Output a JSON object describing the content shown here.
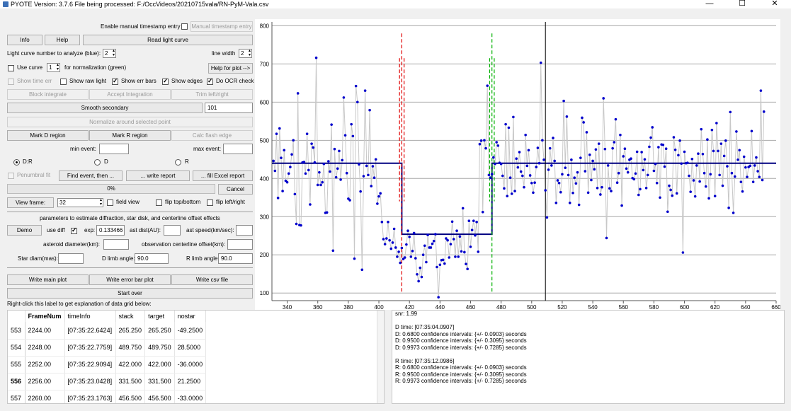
{
  "window": {
    "title": "PYOTE Version: 3.7.6  File being processed: F:/OccVideos/20210715vala/RN-PyM-Vala.csv",
    "controls": [
      "—",
      "☐",
      "✕"
    ]
  },
  "controls": {
    "manual_timestamp_label": "Enable manual timestamp entry",
    "manual_timestamp_btn": "Manual timestamp entry",
    "info_btn": "Info",
    "help_btn": "Help",
    "read_light_curve_btn": "Read light curve",
    "light_curve_number_label": "Light curve number to analyze (blue):",
    "light_curve_number": "2",
    "line_width_label": "line width",
    "line_width": "2",
    "use_curve_label": "Use curve",
    "use_curve_number": "1",
    "normalization_label": "for normalization (green)",
    "help_plot_btn": "Help for plot -->",
    "show_time_err": "Show time err",
    "show_raw_light": "Show raw light",
    "show_err_bars": "Show err bars",
    "show_edges": "Show edges",
    "do_ocr_check": "Do OCR check",
    "block_integrate_btn": "Block integrate",
    "accept_integration_btn": "Accept Integration",
    "trim_btn": "Trim left/right",
    "smooth_secondary_btn": "Smooth secondary",
    "smooth_value": "101",
    "normalize_btn": "Normalize around selected point",
    "mark_d_btn": "Mark D region",
    "mark_r_btn": "Mark R region",
    "calc_flash_btn": "Calc flash edge",
    "min_event_label": "min event:",
    "max_event_label": "max event:",
    "radio_dr": "D:R",
    "radio_d": "D",
    "radio_r": "R",
    "penumbral_fit": "Penumbral fit",
    "find_event_btn": "Find event, then ...",
    "write_report_btn": "... write report",
    "fill_excel_btn": "... fill Excel report",
    "progress": "0%",
    "cancel_btn": "Cancel",
    "view_frame_btn": "View frame:",
    "view_frame_value": "32",
    "field_view": "field view",
    "flip_top_bottom": "flip top/bottom",
    "flip_left_right": "flip left/right",
    "params_heading": "parameters to estimate diffraction, star disk, and centerline offset effects",
    "demo_btn": "Demo",
    "use_diff_label": "use diff",
    "exp_label": "exp:",
    "exp_value": "0.133466",
    "ast_dist_label": "ast dist(AU):",
    "ast_speed_label": "ast speed(km/sec):",
    "ast_diam_label": "asteroid diameter(km):",
    "centerline_label": "observation centerline offset(km):",
    "star_diam_label": "Star diam(mas):",
    "d_limb_label": "D limb angle:",
    "d_limb_value": "90.0",
    "r_limb_label": "R limb angle:",
    "r_limb_value": "90.0",
    "write_main_plot_btn": "Write main plot",
    "write_error_bar_btn": "Write error bar plot",
    "write_csv_btn": "Write csv file",
    "start_over_btn": "Start over",
    "grid_help_label": "Right-click this label to get explanation of data grid below:"
  },
  "grid": {
    "headers": [
      "FrameNum",
      "timeInfo",
      "stack",
      "target",
      "nostar"
    ],
    "rows": [
      {
        "idx": "553",
        "frame": "2244.00",
        "time": "[07:35:22.6424]",
        "stack": "265.250",
        "target": "265.250",
        "nostar": "-49.2500"
      },
      {
        "idx": "554",
        "frame": "2248.00",
        "time": "[07:35:22.7759]",
        "stack": "489.750",
        "target": "489.750",
        "nostar": "28.5000"
      },
      {
        "idx": "555",
        "frame": "2252.00",
        "time": "[07:35:22.9094]",
        "stack": "422.000",
        "target": "422.000",
        "nostar": "-36.0000"
      },
      {
        "idx": "556",
        "frame": "2256.00",
        "time": "[07:35:23.0428]",
        "stack": "331.500",
        "target": "331.500",
        "nostar": "21.2500"
      },
      {
        "idx": "557",
        "frame": "2260.00",
        "time": "[07:35:23.1763]",
        "stack": "456.500",
        "target": "456.500",
        "nostar": "-33.0000"
      }
    ]
  },
  "report_lines": [
    "snr: 1.99",
    "",
    "D time: [07:35:04.0907]",
    "D: 0.6800 confidence intervals: {+/- 0.0903} seconds",
    "D: 0.9500 confidence intervals: {+/- 0.3095} seconds",
    "D: 0.9973 confidence intervals: {+/- 0.7285} seconds",
    "",
    "R time: [07:35:12.0986]",
    "R: 0.6800 confidence intervals: {+/- 0.0903} seconds",
    "R: 0.9500 confidence intervals: {+/- 0.3095} seconds",
    "R: 0.9973 confidence intervals: {+/- 0.7285} seconds"
  ],
  "chart_data": {
    "type": "scatter",
    "xlim": [
      330,
      660
    ],
    "ylim": [
      80,
      810
    ],
    "x_ticks": [
      340,
      360,
      380,
      400,
      420,
      440,
      460,
      480,
      500,
      520,
      540,
      560,
      580,
      600,
      620,
      640,
      660
    ],
    "y_ticks": [
      100,
      200,
      300,
      400,
      500,
      600,
      700,
      800
    ],
    "grid": true,
    "colors": {
      "points": "#0000cc",
      "trace": "#c8c8c8",
      "fit": "#000080",
      "d_edge": "#e00000",
      "r_edge": "#00b000",
      "cursor": "#000000"
    },
    "series": [
      {
        "values_x_start": 331,
        "x_step": 1,
        "values": [
          446,
          420,
          517,
          349,
          531,
          454,
          367,
          474,
          394,
          390,
          413,
          430,
          463,
          500,
          359,
          281,
          623,
          278,
          277,
          442,
          443,
          413,
          517,
          422,
          332,
          491,
          481,
          442,
          716,
          383,
          416,
          383,
          390,
          438,
          310,
          311,
          445,
          418,
          541,
          211,
          477,
          403,
          426,
          472,
          397,
          448,
          612,
          513,
          414,
          347,
          343,
          542,
          511,
          190,
          642,
          600,
          437,
          366,
          161,
          406,
          630,
          433,
          409,
          579,
          380,
          432,
          402,
          450,
          334,
          353,
          361,
          286,
          241,
          228,
          243,
          286,
          238,
          216,
          232,
          268,
          219,
          195,
          208,
          179,
          218,
          189,
          193,
          227,
          263,
          247,
          195,
          210,
          257,
          191,
          149,
          131,
          166,
          142,
          200,
          224,
          181,
          252,
          219,
          219,
          229,
          236,
          254,
          168,
          89,
          174,
          186,
          187,
          177,
          243,
          238,
          193,
          228,
          287,
          241,
          195,
          263,
          195,
          248,
          209,
          322,
          207,
          176,
          163,
          289,
          221,
          265,
          289,
          251,
          286,
          208,
          490,
          499,
          312,
          500,
          479,
          643,
          409,
          402,
          411,
          455,
          438,
          495,
          486,
          441,
          438,
          407,
          374,
          542,
          354,
          533,
          402,
          360,
          561,
          367,
          452,
          429,
          469,
          418,
          407,
          377,
          514,
          433,
          474,
          408,
          388,
          363,
          389,
          430,
          480,
          440,
          703,
          500,
          449,
          369,
          298,
          423,
          479,
          434,
          506,
          446,
          336,
          395,
          388,
          364,
          411,
          603,
          428,
          562,
          409,
          336,
          449,
          362,
          402,
          387,
          416,
          331,
          454,
          559,
          547,
          419,
          521,
          363,
          462,
          396,
          446,
          424,
          476,
          375,
          491,
          358,
          377,
          610,
          477,
          244,
          434,
          374,
          367,
          479,
          495,
          555,
          389,
          414,
          514,
          329,
          458,
          478,
          426,
          416,
          449,
          452,
          401,
          398,
          413,
          470,
          357,
          372,
          469,
          422,
          450,
          375,
          409,
          483,
          507,
          534,
          420,
          438,
          388,
          482,
          350,
          489,
          488,
          431,
          478,
          313,
          381,
          370,
          355,
          508,
          475,
          361,
          461,
          499,
          439,
          206,
          470,
          440,
          441,
          407,
          365,
          451,
          395,
          353,
          434,
          465,
          392,
          529,
          464,
          414,
          379,
          502,
          348,
          411,
          527,
          472,
          354,
          545,
          472,
          409,
          491,
          381,
          459,
          499,
          432,
          323,
          574,
          414,
          310,
          405,
          523,
          449,
          474,
          391,
          366,
          457,
          429,
          404,
          430,
          433,
          524,
          391,
          434,
          455,
          419,
          404,
          630,
          396,
          575
        ]
      }
    ],
    "fit_line": {
      "baseline": 440,
      "bottom": 254,
      "d_x": 415,
      "r_x": 474
    },
    "d_edge_x": [
      413.5,
      415,
      416.5
    ],
    "r_edge_x": [
      472.5,
      474,
      475.5
    ],
    "cursor_x": 509
  }
}
